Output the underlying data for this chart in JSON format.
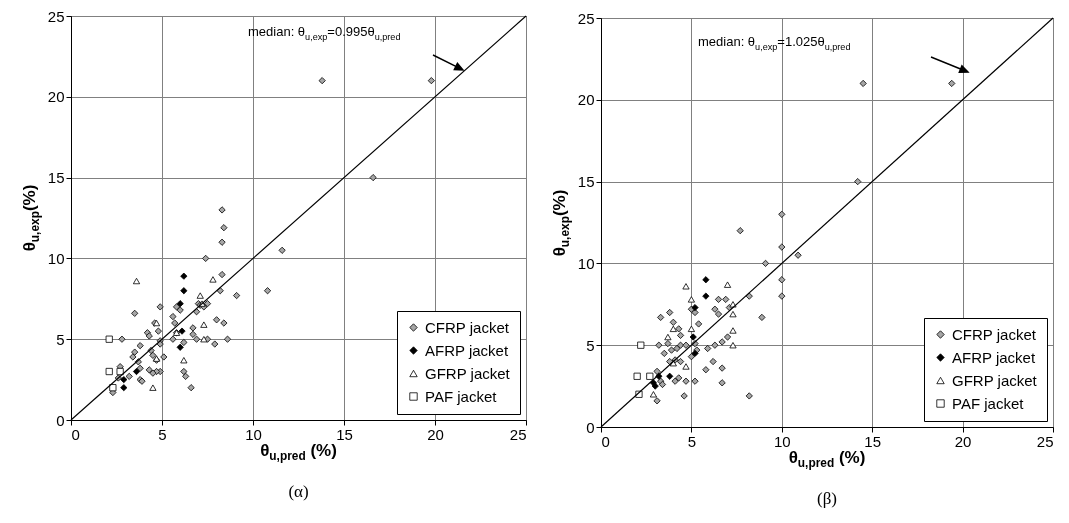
{
  "chart_data": [
    {
      "type": "scatter",
      "title": "(α)",
      "xlabel": "θ$_{u,pred}$ (%)",
      "ylabel": "θ$_{u,exp}$(%)",
      "annotations": [
        "median: θ$_{u,exp}$=0.995θ$_{u,pred}$"
      ],
      "xlim": [
        0,
        25
      ],
      "ylim": [
        0,
        25
      ],
      "xticks": [
        0,
        5,
        10,
        15,
        20,
        25
      ],
      "yticks": [
        0,
        5,
        10,
        15,
        20,
        25
      ],
      "grid": true,
      "legend": "bottom right",
      "series": [
        {
          "name": "CFRP jacket",
          "color": "#a6a6a6",
          "marker": "diamond",
          "x": [
            8.3,
            8.4,
            8.3,
            11.6,
            7.4,
            8.3,
            8.2,
            9.1,
            10.8,
            3.5,
            4.9,
            5.6,
            5.8,
            6.0,
            7.0,
            7.1,
            7.5,
            7.3,
            6.9,
            8.0,
            8.4,
            6.7,
            6.7,
            6.9,
            7.5,
            7.9,
            8.6,
            2.8,
            4.6,
            4.2,
            4.3,
            4.8,
            4.9,
            4.9,
            5.7,
            5.8,
            5.6,
            6.2,
            3.8,
            3.5,
            3.4,
            3.7,
            4.4,
            4.5,
            4.7,
            5.1,
            4.9,
            4.7,
            4.3,
            4.5,
            3.8,
            3.8,
            3.9,
            3.2,
            2.7,
            2.6,
            6.2,
            6.3,
            6.6,
            2.3,
            13.8,
            19.8,
            16.6
          ],
          "values": [
            13.0,
            11.9,
            11.0,
            10.5,
            10.0,
            9.0,
            8.0,
            7.7,
            8.0,
            6.6,
            7.0,
            6.4,
            7.0,
            6.8,
            7.2,
            7.1,
            7.2,
            7.0,
            6.7,
            6.2,
            6.0,
            5.7,
            5.3,
            5.0,
            5.0,
            4.7,
            5.0,
            5.0,
            6.0,
            5.4,
            5.2,
            5.5,
            4.9,
            4.7,
            6.0,
            5.4,
            5.0,
            4.8,
            4.6,
            4.2,
            3.9,
            3.6,
            4.3,
            4.0,
            3.7,
            3.9,
            3.0,
            3.0,
            3.1,
            2.9,
            3.2,
            2.5,
            2.4,
            2.7,
            3.3,
            2.6,
            3.0,
            2.7,
            2.0,
            1.7,
            21.0,
            21.0,
            15.0
          ]
        },
        {
          "name": "AFRP jacket",
          "color": "#000000",
          "marker": "diamond",
          "x": [
            6.2,
            6.2,
            6.0,
            6.1,
            6.0,
            3.6,
            2.9,
            2.9
          ],
          "values": [
            8.9,
            8.0,
            7.2,
            5.5,
            4.5,
            3.0,
            2.5,
            2.0
          ]
        },
        {
          "name": "GFRP jacket",
          "color": "#ffffff",
          "marker": "triangle",
          "x": [
            3.6,
            7.8,
            7.1,
            7.2,
            4.7,
            7.3,
            7.3,
            5.8,
            6.2,
            4.5,
            4.7
          ],
          "values": [
            8.6,
            8.7,
            7.7,
            7.2,
            6.0,
            5.9,
            5.0,
            5.4,
            3.7,
            2.0,
            3.8
          ]
        },
        {
          "name": "PAF jacket",
          "color": "#ffffff",
          "marker": "square",
          "x": [
            2.1,
            2.1,
            2.7,
            2.3
          ],
          "values": [
            5.0,
            3.0,
            3.0,
            2.0
          ]
        },
        {
          "type": "line",
          "color": "#000000",
          "x": [
            0,
            25
          ],
          "values": [
            0,
            25
          ]
        }
      ]
    },
    {
      "type": "scatter",
      "title": "(β)",
      "xlabel": "θ$_{u,pred}$ (%)",
      "ylabel": "θ$_{u,exp}$(%)",
      "annotations": [
        "median: θ$_{u,exp}$=1.025θ$_{u,pred}$"
      ],
      "xlim": [
        0,
        25
      ],
      "ylim": [
        0,
        25
      ],
      "xticks": [
        0,
        5,
        10,
        15,
        20,
        25
      ],
      "yticks": [
        0,
        5,
        10,
        15,
        20,
        25
      ],
      "grid": true,
      "legend": "bottom right",
      "series": [
        {
          "name": "CFRP jacket",
          "color": "#a6a6a6",
          "marker": "diamond",
          "x": [
            10.0,
            7.7,
            10.0,
            10.9,
            9.1,
            10.0,
            10.0,
            8.2,
            8.9,
            6.5,
            6.9,
            6.3,
            6.5,
            7.1,
            5.2,
            5.0,
            5.4,
            3.3,
            3.8,
            4.0,
            4.3,
            4.4,
            3.2,
            3.7,
            3.5,
            3.9,
            4.2,
            4.4,
            4.7,
            5.2,
            5.0,
            5.3,
            5.9,
            6.3,
            6.7,
            7.0,
            3.8,
            4.1,
            4.4,
            6.2,
            5.8,
            6.7,
            6.7,
            5.2,
            4.7,
            4.1,
            4.3,
            3.3,
            3.1,
            4.6,
            8.2,
            3.1,
            3.4,
            14.5,
            19.4,
            14.2
          ],
          "values": [
            13.0,
            12.0,
            11.0,
            10.5,
            10.0,
            9.0,
            8.0,
            8.0,
            6.7,
            7.8,
            7.8,
            7.2,
            6.9,
            7.3,
            7.0,
            7.2,
            6.3,
            6.7,
            7.0,
            6.4,
            6.0,
            5.6,
            5.0,
            5.1,
            4.5,
            4.7,
            4.8,
            5.0,
            5.0,
            5.1,
            4.3,
            4.7,
            4.8,
            5.0,
            5.2,
            5.5,
            4.0,
            4.1,
            4.0,
            4.0,
            3.5,
            3.6,
            2.7,
            2.8,
            2.8,
            2.8,
            3.0,
            2.8,
            3.4,
            1.9,
            1.9,
            1.6,
            2.6,
            21.0,
            21.0,
            15.0
          ]
        },
        {
          "name": "AFRP jacket",
          "color": "#000000",
          "marker": "diamond",
          "x": [
            5.8,
            5.8,
            5.2,
            5.1,
            5.2,
            3.8,
            3.2,
            3.0,
            2.9
          ],
          "values": [
            9.0,
            8.0,
            7.3,
            5.5,
            4.5,
            3.1,
            3.1,
            2.5,
            2.7
          ]
        },
        {
          "name": "GFRP jacket",
          "color": "#ffffff",
          "marker": "triangle",
          "x": [
            4.7,
            7.0,
            5.0,
            7.3,
            7.3,
            4.0,
            5.0,
            3.7,
            7.3,
            7.3,
            4.0,
            4.7,
            2.9
          ],
          "values": [
            8.6,
            8.7,
            7.8,
            7.5,
            6.9,
            6.0,
            6.0,
            5.5,
            5.9,
            5.0,
            3.9,
            3.7,
            2.0
          ]
        },
        {
          "name": "PAF jacket",
          "color": "#ffffff",
          "marker": "square",
          "x": [
            2.2,
            2.0,
            2.7,
            2.1
          ],
          "values": [
            5.0,
            3.1,
            3.1,
            2.0
          ]
        },
        {
          "type": "line",
          "color": "#000000",
          "x": [
            0,
            25
          ],
          "values": [
            0,
            25
          ]
        }
      ]
    }
  ]
}
